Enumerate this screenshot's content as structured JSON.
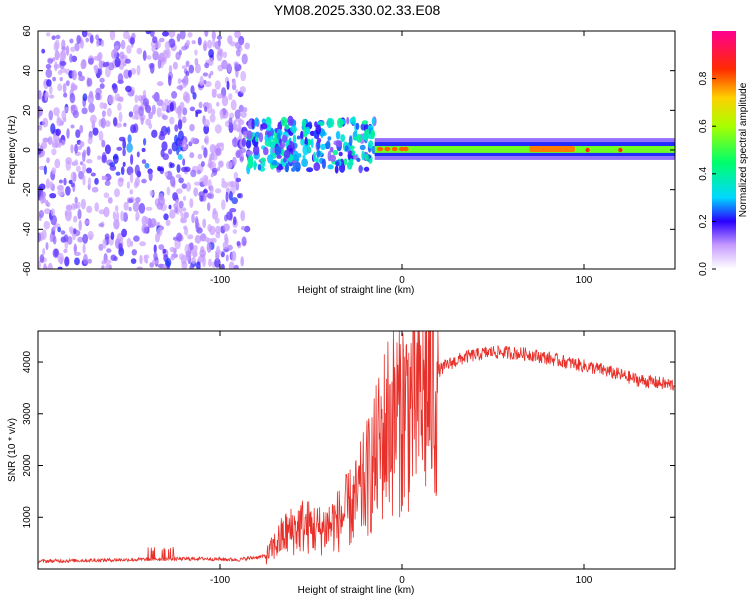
{
  "title": "YM08.2025.330.02.33.E08",
  "colors": {
    "snr_line": "#e8302a",
    "frame": "#000000",
    "background": "#ffffff"
  },
  "chart_data": [
    {
      "type": "heatmap",
      "name": "spectrogram",
      "xlabel": "Height of straight line (km)",
      "ylabel": "Frequency (Hz)",
      "xlim": [
        -200,
        150
      ],
      "ylim": [
        -60,
        60
      ],
      "x_ticks": [
        -100,
        0,
        100
      ],
      "y_ticks": [
        -60,
        -40,
        -20,
        0,
        20,
        40,
        60
      ],
      "colorbar": {
        "label": "Normalized spectral amplitude",
        "range": [
          0,
          1
        ],
        "ticks": [
          0.0,
          0.2,
          0.4,
          0.6,
          0.8
        ]
      },
      "regions": [
        {
          "x_range": [
            -200,
            -85
          ],
          "freq_range": [
            -60,
            60
          ],
          "description": "diffuse noise",
          "amplitude": 0.1
        },
        {
          "x_range": [
            -85,
            -15
          ],
          "freq_range": [
            -10,
            15
          ],
          "description": "scattered signal",
          "amplitude": 0.35
        },
        {
          "x_range": [
            -15,
            150
          ],
          "freq_range": [
            -3,
            4
          ],
          "description": "narrow carrier near 0 Hz",
          "amplitude": 0.55
        },
        {
          "x_range": [
            70,
            95
          ],
          "freq_range": [
            -1,
            2
          ],
          "description": "strongest carrier",
          "amplitude": 0.95
        }
      ]
    },
    {
      "type": "line",
      "name": "snr",
      "xlabel": "Height of straight line (km)",
      "ylabel": "SNR (10 * v/v)",
      "xlim": [
        -200,
        150
      ],
      "ylim": [
        0,
        4600
      ],
      "x_ticks": [
        -100,
        0,
        100
      ],
      "y_ticks": [
        1000,
        2000,
        3000,
        4000
      ],
      "series": [
        {
          "name": "SNR",
          "x": [
            -200,
            -150,
            -110,
            -90,
            -75,
            -65,
            -55,
            -45,
            -35,
            -25,
            -15,
            -8,
            -2,
            5,
            15,
            25,
            35,
            50,
            70,
            90,
            110,
            130,
            150
          ],
          "values": [
            150,
            180,
            200,
            180,
            250,
            700,
            900,
            800,
            1000,
            1400,
            2200,
            3000,
            3200,
            3400,
            3700,
            3950,
            4100,
            4200,
            4150,
            4000,
            3850,
            3650,
            3550
          ]
        }
      ]
    }
  ]
}
